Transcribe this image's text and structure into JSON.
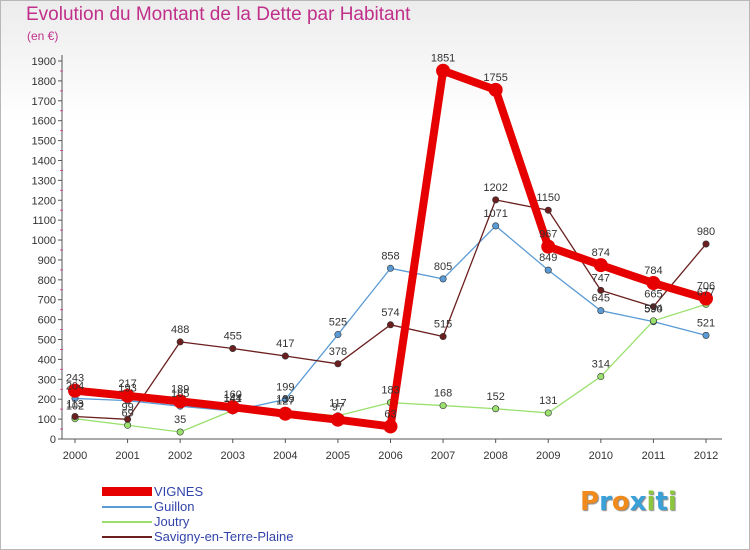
{
  "title": "Evolution du Montant de la Dette par Habitant",
  "unit": "(en €)",
  "logo": {
    "text": "Proxiti",
    "colors": [
      "#f08a1c",
      "#3aa0d8",
      "#f08a1c",
      "#3aa0d8",
      "#8cc63f",
      "#3aa0d8",
      "#8cc63f"
    ]
  },
  "chart_data": {
    "type": "line",
    "x": [
      "2000",
      "2001",
      "2002",
      "2003",
      "2004",
      "2005",
      "2006",
      "2007",
      "2008",
      "2009",
      "2010",
      "2011",
      "2012"
    ],
    "ylim": [
      0,
      1900
    ],
    "yticks": [
      0,
      100,
      200,
      300,
      400,
      500,
      600,
      700,
      800,
      900,
      1000,
      1100,
      1200,
      1300,
      1400,
      1500,
      1600,
      1700,
      1800,
      1900
    ],
    "grid": false,
    "legend_position": "bottom-left",
    "series": [
      {
        "name": "VIGNES",
        "color": "#e60000",
        "values": [
          243,
          217,
          189,
          160,
          127,
          97,
          63,
          1851,
          1755,
          967,
          874,
          784,
          706
        ],
        "labels": [
          "243",
          "217",
          "189",
          "160",
          "127",
          "97",
          "63",
          "1851",
          "1755",
          "967",
          "874",
          "784",
          "706"
        ]
      },
      {
        "name": "Guillon",
        "color": "#5b9bd5",
        "values": [
          204,
          193,
          165,
          141,
          199,
          525,
          858,
          805,
          1071,
          849,
          645,
          590,
          521
        ],
        "labels": [
          "204",
          "193",
          "165",
          "141",
          "199",
          "525",
          "858",
          "805",
          "1071",
          "849",
          "645",
          "590",
          "521"
        ]
      },
      {
        "name": "Joutry",
        "color": "#9ae06e",
        "values": [
          102,
          69,
          35,
          144,
          139,
          117,
          183,
          168,
          152,
          131,
          314,
          594,
          677
        ],
        "labels": [
          "102",
          "69",
          "35",
          "144",
          "139",
          "117",
          "183",
          "168",
          "152",
          "131",
          "314",
          "594",
          "677"
        ]
      },
      {
        "name": "Savigny-en-Terre-Plaine",
        "color": "#6b1f1f",
        "values": [
          113,
          99,
          488,
          455,
          417,
          378,
          574,
          515,
          1202,
          1150,
          747,
          665,
          980
        ],
        "labels": [
          "113",
          "99",
          "488",
          "455",
          "417",
          "378",
          "574",
          "515",
          "1202",
          "1150",
          "747",
          "665",
          "980"
        ]
      }
    ]
  }
}
